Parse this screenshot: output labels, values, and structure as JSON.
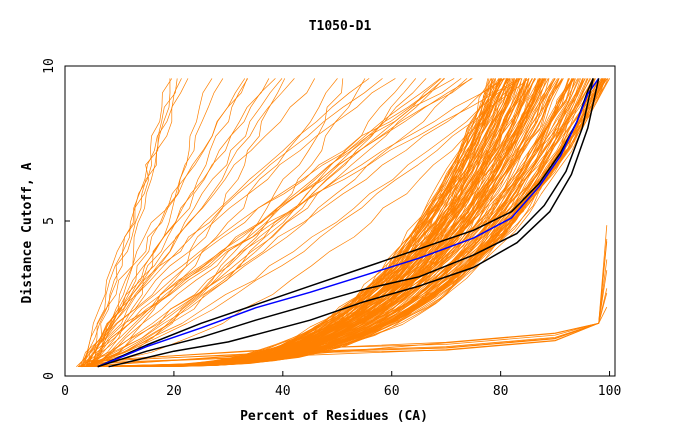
{
  "chart_data": {
    "type": "line",
    "title": "T1050-D1",
    "xlabel": "Percent of Residues (CA)",
    "ylabel": "Distance Cutoff, A",
    "xlim": [
      0,
      101
    ],
    "ylim": [
      0,
      10
    ],
    "xticks": [
      "0",
      "20",
      "40",
      "60",
      "80",
      "100"
    ],
    "yticks": [
      "0",
      "5",
      "10"
    ],
    "grid": false,
    "colors": {
      "bulk": "#ff8000",
      "highlight_black": "#000000",
      "highlight_blue": "#0000ff"
    },
    "series": [
      {
        "color": "#000000",
        "x": [
          6,
          15,
          25,
          35,
          45,
          55,
          65,
          75,
          82,
          87,
          91,
          94,
          96,
          97
        ],
        "y": [
          0.3,
          1.0,
          1.7,
          2.3,
          2.9,
          3.5,
          4.1,
          4.7,
          5.3,
          6.2,
          7.2,
          8.2,
          9.2,
          9.6
        ]
      },
      {
        "color": "#0000ff",
        "x": [
          6,
          15,
          25,
          35,
          45,
          55,
          65,
          75,
          82,
          87,
          91,
          94,
          96,
          98
        ],
        "y": [
          0.3,
          0.95,
          1.55,
          2.2,
          2.7,
          3.25,
          3.8,
          4.45,
          5.1,
          6.1,
          7.1,
          8.2,
          9.1,
          9.6
        ]
      },
      {
        "color": "#000000",
        "x": [
          6,
          15,
          25,
          35,
          45,
          55,
          65,
          75,
          83,
          88,
          92,
          95,
          97
        ],
        "y": [
          0.3,
          0.8,
          1.25,
          1.8,
          2.3,
          2.8,
          3.2,
          3.9,
          4.6,
          5.5,
          6.6,
          8.0,
          9.6
        ]
      },
      {
        "color": "#000000",
        "x": [
          8,
          20,
          30,
          45,
          55,
          65,
          75,
          83,
          89,
          93,
          96,
          98
        ],
        "y": [
          0.3,
          0.8,
          1.1,
          1.8,
          2.4,
          2.9,
          3.5,
          4.3,
          5.3,
          6.5,
          8.0,
          9.6
        ]
      }
    ]
  }
}
